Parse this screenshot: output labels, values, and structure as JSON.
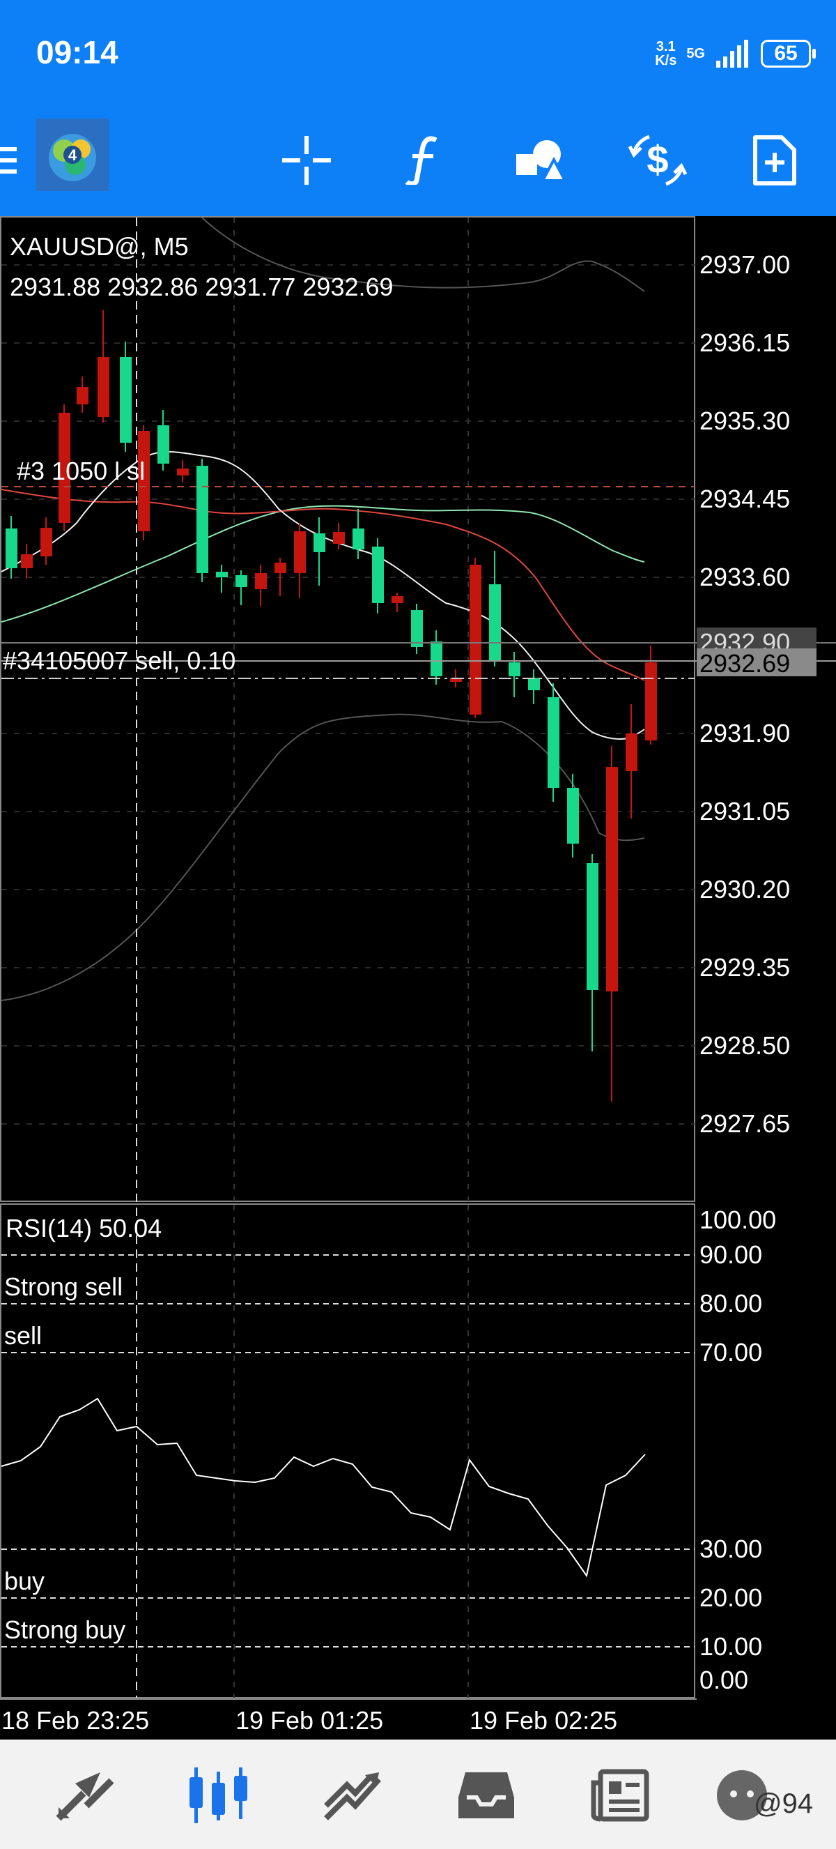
{
  "status_bar": {
    "time": "09:14",
    "net_speed_value": "3.1",
    "net_speed_unit": "K/s",
    "network": "5G",
    "battery": "65"
  },
  "toolbar": {
    "items": [
      {
        "name": "menu-icon"
      },
      {
        "name": "app-logo-icon"
      },
      {
        "name": "crosshair-icon"
      },
      {
        "name": "indicators-f-icon"
      },
      {
        "name": "objects-shapes-icon"
      },
      {
        "name": "trade-dollar-icon"
      },
      {
        "name": "new-document-icon"
      }
    ]
  },
  "chart": {
    "symbol_title": "XAUUSD@, M5",
    "ohlc": "2931.88 2932.86 2931.77 2932.69",
    "price_labels": [
      "2937.00",
      "2936.15",
      "2935.30",
      "2934.45",
      "2933.60",
      "2932.90",
      "2932.69",
      "2931.90",
      "2931.05",
      "2930.20",
      "2929.35",
      "2928.50",
      "2927.65"
    ],
    "order_label_top": "#3  1050  l  sl",
    "order_label": "#34105007 sell, 0.10",
    "ask_price": "2932.90",
    "bid_price": "2932.69",
    "time_labels": [
      "18 Feb 23:25",
      "19 Feb 01:25",
      "19 Feb 02:25"
    ]
  },
  "rsi": {
    "title": "RSI(14) 50.04",
    "levels": [
      "100.00",
      "90.00",
      "80.00",
      "70.00",
      "30.00",
      "20.00",
      "10.00",
      "0.00"
    ],
    "zone_labels": {
      "strong_sell": "Strong sell",
      "sell": "sell",
      "buy": "buy",
      "strong_buy": "Strong buy"
    }
  },
  "tab_bar": {
    "items": [
      {
        "name": "quotes-tab-icon"
      },
      {
        "name": "chart-tab-icon"
      },
      {
        "name": "trade-tab-icon"
      },
      {
        "name": "history-tab-icon"
      },
      {
        "name": "news-tab-icon"
      },
      {
        "name": "community-tab-icon"
      }
    ],
    "watermark": "@94"
  },
  "colors": {
    "accent": "#0d7ff7",
    "bull": "#18d88b",
    "bear": "#c4160f",
    "ma_red": "#e0473e",
    "ma_green": "#8fe6b0"
  }
}
